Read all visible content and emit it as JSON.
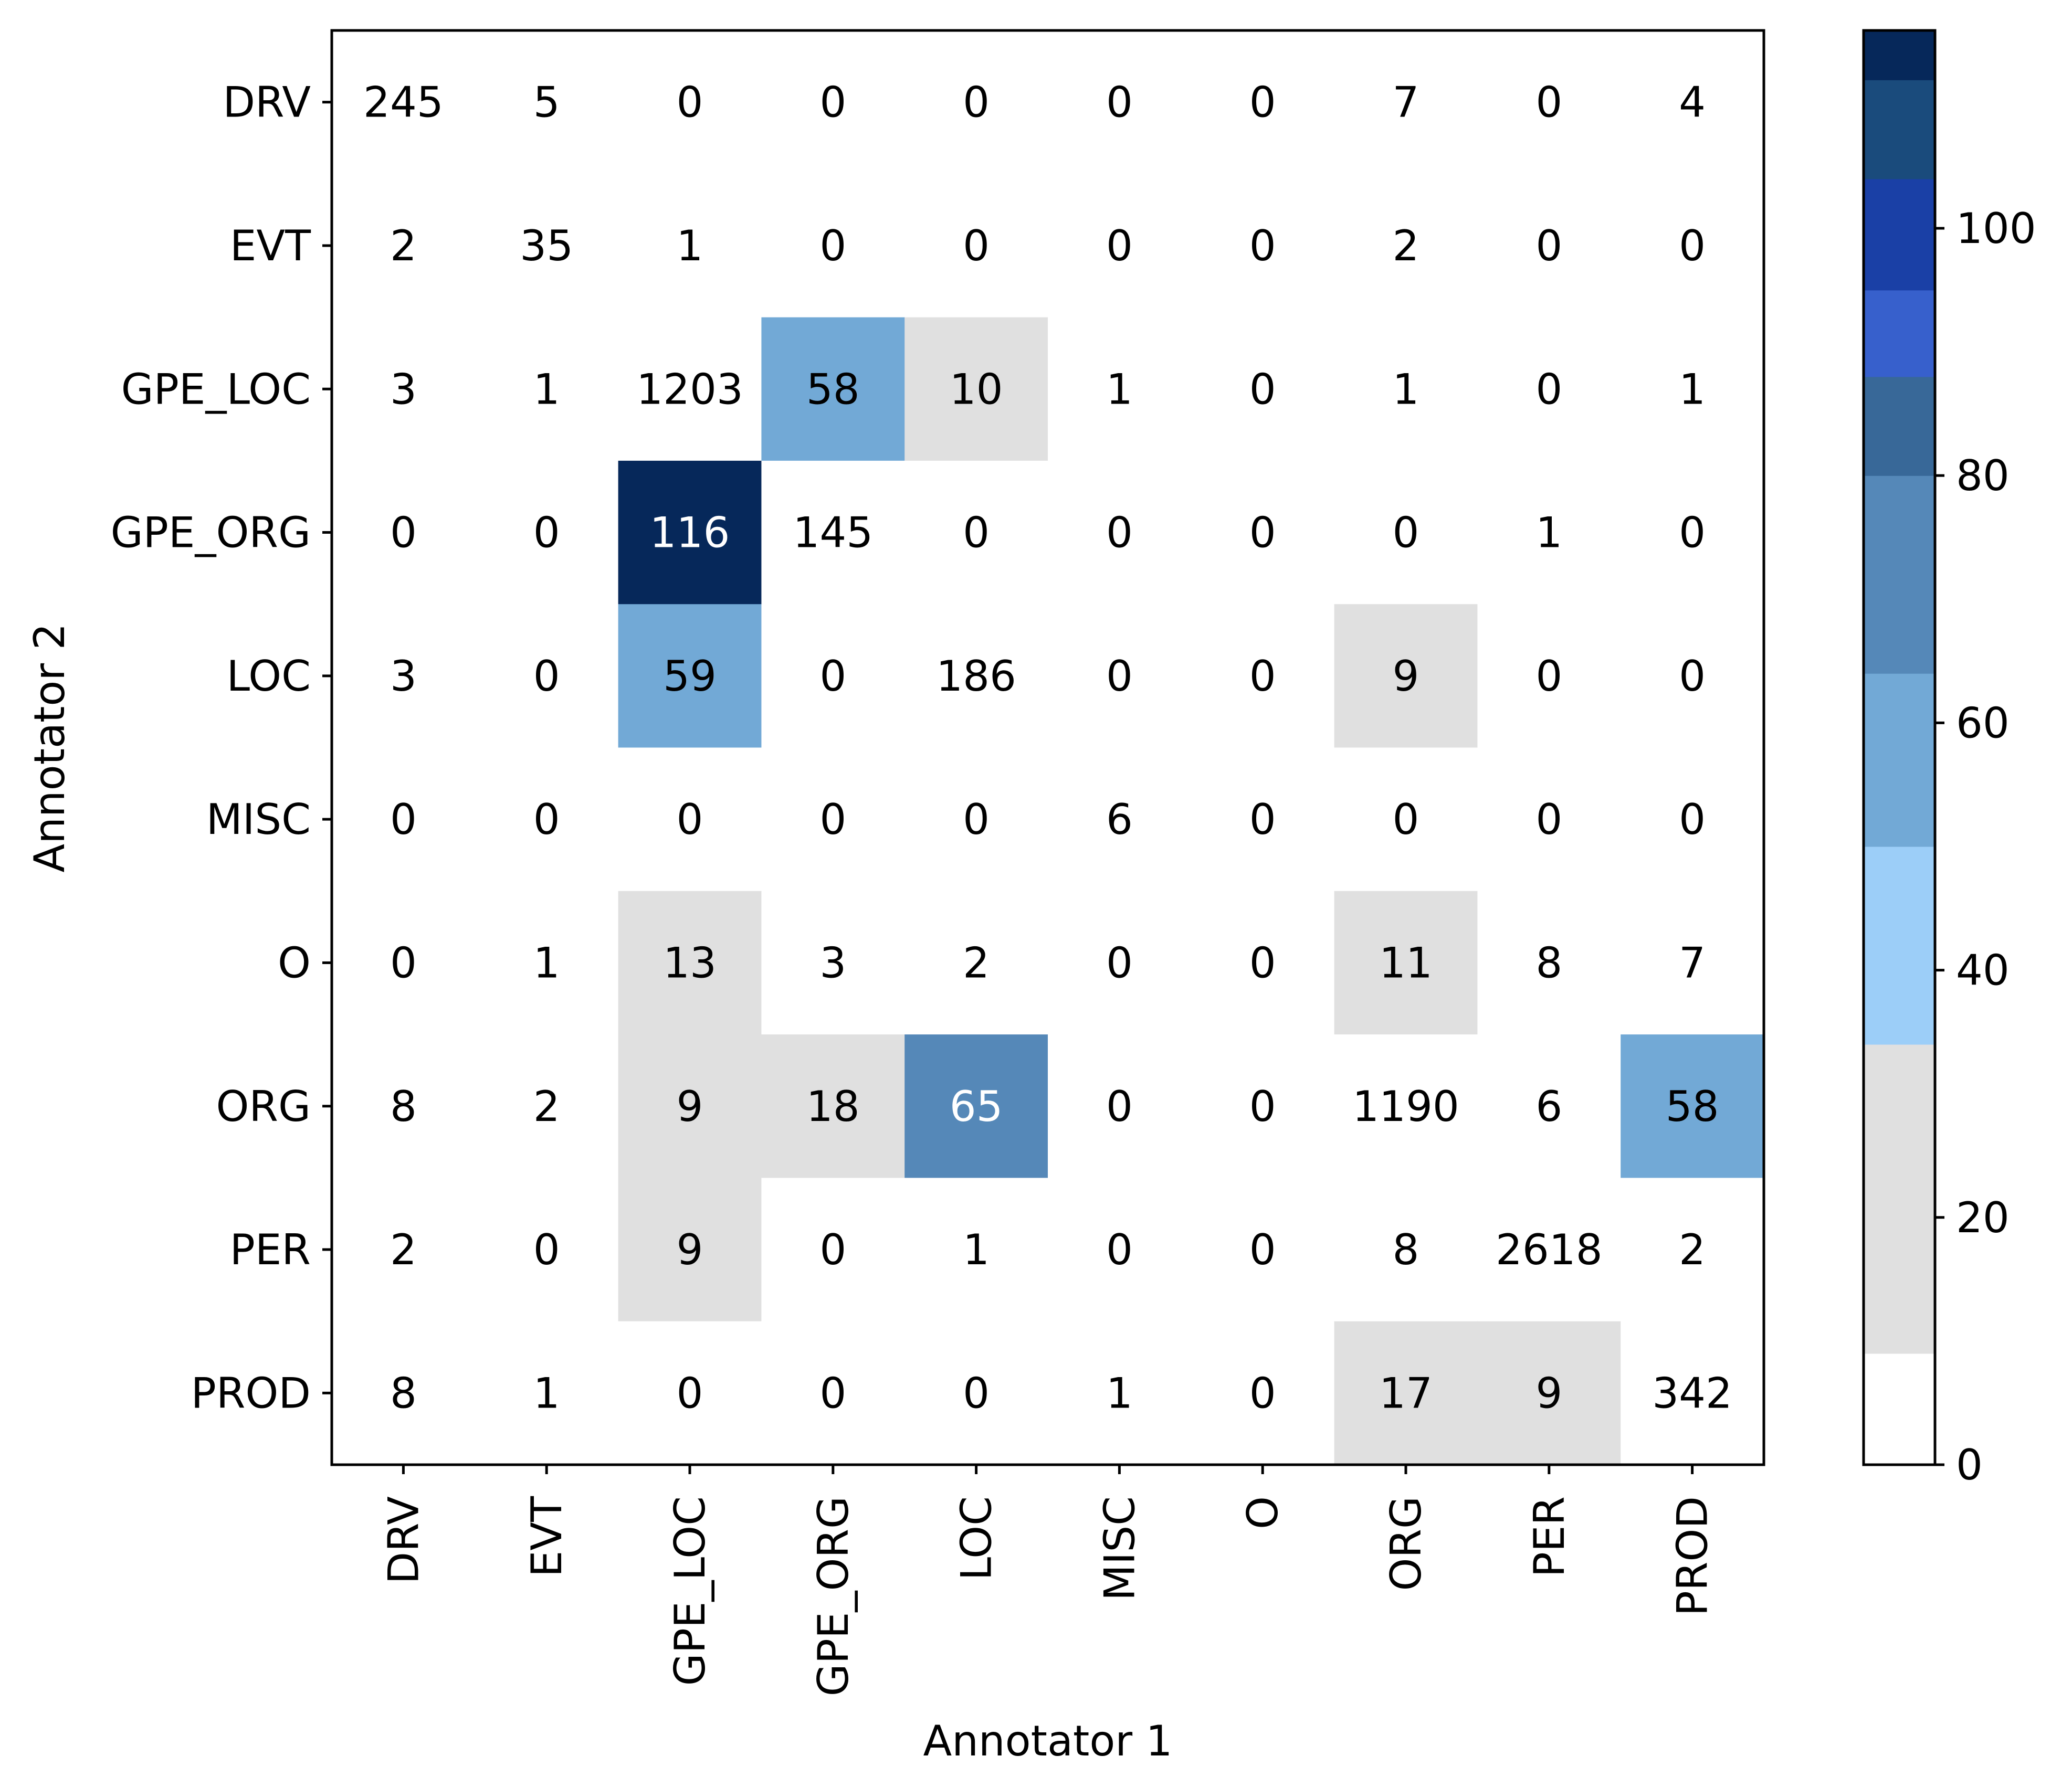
{
  "chart_data": {
    "type": "heatmap",
    "xlabel": "Annotator 1",
    "ylabel": "Annotator 2",
    "x_categories": [
      "DRV",
      "EVT",
      "GPE_LOC",
      "GPE_ORG",
      "LOC",
      "MISC",
      "O",
      "ORG",
      "PER",
      "PROD"
    ],
    "y_categories": [
      "DRV",
      "EVT",
      "GPE_LOC",
      "GPE_ORG",
      "LOC",
      "MISC",
      "O",
      "ORG",
      "PER",
      "PROD"
    ],
    "values": [
      [
        245,
        5,
        0,
        0,
        0,
        0,
        0,
        7,
        0,
        4
      ],
      [
        2,
        35,
        1,
        0,
        0,
        0,
        0,
        2,
        0,
        0
      ],
      [
        3,
        1,
        1203,
        58,
        10,
        1,
        0,
        1,
        0,
        1
      ],
      [
        0,
        0,
        116,
        145,
        0,
        0,
        0,
        0,
        1,
        0
      ],
      [
        3,
        0,
        59,
        0,
        186,
        0,
        0,
        9,
        0,
        0
      ],
      [
        0,
        0,
        0,
        0,
        0,
        6,
        0,
        0,
        0,
        0
      ],
      [
        0,
        1,
        13,
        3,
        2,
        0,
        0,
        11,
        8,
        7
      ],
      [
        8,
        2,
        9,
        18,
        65,
        0,
        0,
        1190,
        6,
        58
      ],
      [
        2,
        0,
        9,
        0,
        1,
        0,
        0,
        8,
        2618,
        2
      ],
      [
        8,
        1,
        0,
        0,
        0,
        1,
        0,
        17,
        9,
        342
      ]
    ],
    "diagonal_colored": false,
    "colorbar": {
      "vmin": 0,
      "vmax": 116,
      "ticks": [
        0,
        20,
        40,
        60,
        80,
        100
      ],
      "bins": [
        {
          "from": 0,
          "to": 9,
          "color": "#ffffff"
        },
        {
          "from": 9,
          "to": 34,
          "color": "#e0e0e0"
        },
        {
          "from": 34,
          "to": 50,
          "color": "#9ccef8"
        },
        {
          "from": 50,
          "to": 64,
          "color": "#72a9d6"
        },
        {
          "from": 64,
          "to": 80,
          "color": "#5588b8"
        },
        {
          "from": 80,
          "to": 88,
          "color": "#386898"
        },
        {
          "from": 88,
          "to": 95,
          "color": "#3760cc"
        },
        {
          "from": 95,
          "to": 104,
          "color": "#1a40a6"
        },
        {
          "from": 104,
          "to": 112,
          "color": "#1a4b7c"
        },
        {
          "from": 112,
          "to": 116,
          "color": "#06285a"
        }
      ]
    }
  }
}
